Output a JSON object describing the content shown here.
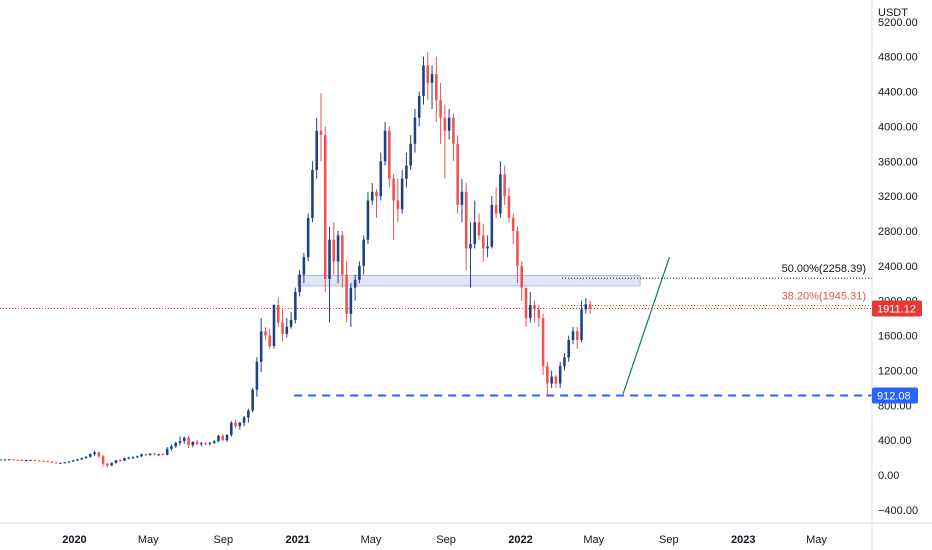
{
  "chart_data": {
    "type": "candlestick",
    "currency": "USDT",
    "y_ticks": [
      5200,
      4800,
      4400,
      4000,
      3600,
      3200,
      2800,
      2400,
      2000,
      1600,
      1200,
      800,
      400,
      0,
      -400
    ],
    "y_tick_labels": [
      "5200.00",
      "4800.00",
      "4400.00",
      "4000.00",
      "3600.00",
      "3200.00",
      "2800.00",
      "2400.00",
      "2000.00",
      "1600.00",
      "1200.00",
      "800.00",
      "400.00",
      "0.00",
      "−400.00"
    ],
    "ylim": [
      -550,
      5450
    ],
    "x_range": [
      "2019-09-01",
      "2023-07-31"
    ],
    "x_ticks": [
      {
        "label": "2020",
        "date": "2020-01-01",
        "bold": true
      },
      {
        "label": "May",
        "date": "2020-05-01",
        "bold": false
      },
      {
        "label": "Sep",
        "date": "2020-09-01",
        "bold": false
      },
      {
        "label": "2021",
        "date": "2021-01-01",
        "bold": true
      },
      {
        "label": "May",
        "date": "2021-05-01",
        "bold": false
      },
      {
        "label": "Sep",
        "date": "2021-09-01",
        "bold": false
      },
      {
        "label": "2022",
        "date": "2022-01-01",
        "bold": true
      },
      {
        "label": "May",
        "date": "2022-05-01",
        "bold": false
      },
      {
        "label": "Sep",
        "date": "2022-09-01",
        "bold": false
      },
      {
        "label": "2023",
        "date": "2023-01-01",
        "bold": true
      },
      {
        "label": "May",
        "date": "2023-05-01",
        "bold": false
      }
    ],
    "candle_interval_days": 7,
    "first_candle_date": "2019-09-02",
    "up_color": "#1e3f8a",
    "down_color": "#ef5350",
    "candles": [
      [
        178,
        180,
        174,
        178
      ],
      [
        178,
        182,
        175,
        179
      ],
      [
        179,
        183,
        174,
        180
      ],
      [
        180,
        182,
        172,
        176
      ],
      [
        176,
        178,
        170,
        174
      ],
      [
        174,
        178,
        168,
        170
      ],
      [
        170,
        176,
        166,
        172
      ],
      [
        172,
        176,
        168,
        173
      ],
      [
        173,
        177,
        166,
        168
      ],
      [
        168,
        172,
        160,
        163
      ],
      [
        163,
        168,
        156,
        160
      ],
      [
        160,
        164,
        150,
        152
      ],
      [
        152,
        156,
        140,
        145
      ],
      [
        145,
        150,
        135,
        138
      ],
      [
        138,
        145,
        132,
        140
      ],
      [
        140,
        150,
        135,
        146
      ],
      [
        146,
        160,
        140,
        156
      ],
      [
        156,
        172,
        150,
        168
      ],
      [
        168,
        185,
        160,
        180
      ],
      [
        180,
        200,
        172,
        195
      ],
      [
        195,
        215,
        188,
        210
      ],
      [
        210,
        250,
        200,
        240
      ],
      [
        240,
        280,
        220,
        260
      ],
      [
        260,
        270,
        200,
        215
      ],
      [
        215,
        230,
        100,
        130
      ],
      [
        130,
        145,
        90,
        110
      ],
      [
        110,
        145,
        100,
        140
      ],
      [
        140,
        175,
        130,
        170
      ],
      [
        170,
        180,
        150,
        165
      ],
      [
        165,
        200,
        160,
        195
      ],
      [
        195,
        210,
        180,
        200
      ],
      [
        200,
        215,
        185,
        205
      ],
      [
        205,
        225,
        195,
        215
      ],
      [
        215,
        245,
        205,
        240
      ],
      [
        240,
        245,
        220,
        230
      ],
      [
        230,
        250,
        220,
        245
      ],
      [
        245,
        255,
        225,
        235
      ],
      [
        235,
        245,
        220,
        240
      ],
      [
        240,
        250,
        225,
        232
      ],
      [
        232,
        320,
        225,
        300
      ],
      [
        300,
        350,
        280,
        330
      ],
      [
        330,
        380,
        310,
        370
      ],
      [
        370,
        445,
        340,
        390
      ],
      [
        390,
        440,
        360,
        430
      ],
      [
        430,
        450,
        310,
        345
      ],
      [
        345,
        390,
        320,
        380
      ],
      [
        380,
        400,
        340,
        355
      ],
      [
        355,
        380,
        330,
        365
      ],
      [
        365,
        380,
        345,
        360
      ],
      [
        360,
        380,
        340,
        370
      ],
      [
        370,
        400,
        355,
        390
      ],
      [
        390,
        460,
        375,
        450
      ],
      [
        450,
        470,
        390,
        400
      ],
      [
        400,
        470,
        380,
        460
      ],
      [
        460,
        620,
        440,
        600
      ],
      [
        600,
        640,
        540,
        560
      ],
      [
        560,
        610,
        520,
        600
      ],
      [
        600,
        680,
        560,
        660
      ],
      [
        660,
        760,
        600,
        740
      ],
      [
        740,
        1000,
        720,
        980
      ],
      [
        980,
        1350,
        900,
        1300
      ],
      [
        1300,
        1800,
        1180,
        1650
      ],
      [
        1650,
        1700,
        1550,
        1600
      ],
      [
        1600,
        1680,
        1450,
        1480
      ],
      [
        1480,
        1960,
        1450,
        1950
      ],
      [
        1950,
        2040,
        1700,
        1750
      ],
      [
        1750,
        1900,
        1530,
        1620
      ],
      [
        1620,
        1800,
        1580,
        1700
      ],
      [
        1700,
        1870,
        1680,
        1780
      ],
      [
        1780,
        2150,
        1740,
        2100
      ],
      [
        2100,
        2350,
        2050,
        2300
      ],
      [
        2300,
        2550,
        2200,
        2500
      ],
      [
        2500,
        3000,
        2450,
        2950
      ],
      [
        2950,
        3600,
        2900,
        3500
      ],
      [
        3500,
        4100,
        3400,
        3950
      ],
      [
        3950,
        4380,
        3600,
        3900
      ],
      [
        3900,
        4000,
        2100,
        2250
      ],
      [
        2250,
        2850,
        1750,
        2700
      ],
      [
        2700,
        2900,
        2300,
        2450
      ],
      [
        2450,
        2800,
        2200,
        2750
      ],
      [
        2750,
        2800,
        2150,
        2300
      ],
      [
        2300,
        2450,
        1750,
        1850
      ],
      [
        1850,
        2200,
        1700,
        2150
      ],
      [
        2150,
        2300,
        2000,
        2240
      ],
      [
        2240,
        2450,
        2200,
        2400
      ],
      [
        2400,
        2750,
        2300,
        2700
      ],
      [
        2700,
        3250,
        2650,
        3150
      ],
      [
        3150,
        3350,
        3100,
        3250
      ],
      [
        3250,
        3280,
        2950,
        3200
      ],
      [
        3200,
        3700,
        3150,
        3600
      ],
      [
        3600,
        4050,
        3550,
        3950
      ],
      [
        3950,
        4000,
        3300,
        3400
      ],
      [
        3400,
        3450,
        2700,
        3150
      ],
      [
        3150,
        3400,
        2900,
        3050
      ],
      [
        3050,
        3500,
        3000,
        3400
      ],
      [
        3400,
        3700,
        3300,
        3550
      ],
      [
        3550,
        3900,
        3500,
        3800
      ],
      [
        3800,
        4200,
        3700,
        4100
      ],
      [
        4100,
        4400,
        4000,
        4350
      ],
      [
        4350,
        4800,
        4250,
        4700
      ],
      [
        4700,
        4850,
        4300,
        4500
      ],
      [
        4500,
        4700,
        4200,
        4600
      ],
      [
        4600,
        4800,
        4050,
        4300
      ],
      [
        4300,
        4500,
        3800,
        4100
      ],
      [
        4100,
        4250,
        3400,
        3950
      ],
      [
        3950,
        4200,
        3850,
        4100
      ],
      [
        4100,
        4150,
        3600,
        3800
      ],
      [
        3800,
        3900,
        3000,
        3100
      ],
      [
        3100,
        3400,
        2900,
        3250
      ],
      [
        3250,
        3350,
        2350,
        2600
      ],
      [
        2600,
        2900,
        2150,
        2650
      ],
      [
        2650,
        3150,
        2600,
        2900
      ],
      [
        2900,
        3000,
        2700,
        2750
      ],
      [
        2750,
        2880,
        2450,
        2600
      ],
      [
        2600,
        2750,
        2500,
        2620
      ],
      [
        2620,
        3200,
        2600,
        3100
      ],
      [
        3100,
        3300,
        2950,
        3000
      ],
      [
        3000,
        3600,
        2950,
        3450
      ],
      [
        3450,
        3550,
        3100,
        3200
      ],
      [
        3200,
        3300,
        2900,
        2950
      ],
      [
        2950,
        3000,
        2650,
        2800
      ],
      [
        2800,
        2850,
        2200,
        2400
      ],
      [
        2400,
        2450,
        2000,
        2150
      ],
      [
        2150,
        2150,
        1700,
        1800
      ],
      [
        1800,
        2100,
        1750,
        1950
      ],
      [
        1950,
        2000,
        1750,
        1900
      ],
      [
        1900,
        1950,
        1700,
        1800
      ],
      [
        1800,
        1850,
        1150,
        1250
      ],
      [
        1250,
        1300,
        900,
        1050
      ],
      [
        1050,
        1200,
        1000,
        1130
      ],
      [
        1130,
        1150,
        1000,
        1050
      ],
      [
        1050,
        1300,
        1000,
        1250
      ],
      [
        1250,
        1400,
        1200,
        1350
      ],
      [
        1350,
        1600,
        1300,
        1550
      ],
      [
        1550,
        1700,
        1500,
        1650
      ],
      [
        1650,
        1700,
        1450,
        1550
      ],
      [
        1550,
        2000,
        1520,
        1900
      ],
      [
        1900,
        2030,
        1850,
        1960
      ],
      [
        1960,
        2000,
        1850,
        1911
      ]
    ],
    "support_zone": {
      "y_low": 2170,
      "y_high": 2290,
      "x_start": "2021-01-01",
      "x_end": "2022-07-16"
    },
    "fib_levels": [
      {
        "label": "50.00%(2258.39)",
        "value": 2258.39,
        "color": "#131722"
      },
      {
        "label": "38.20%(1945.31)",
        "value": 1945.31,
        "color": "#ef5350"
      }
    ],
    "fib_line_start": "2022-03-10",
    "current_price": {
      "value": 1911.12,
      "label": "1911.12",
      "color": "#e53935"
    },
    "horizontal_line": {
      "value": 912.08,
      "label": "912.08",
      "color": "#2962ff",
      "x_start": "2020-12-26"
    },
    "trend_line": {
      "x1": "2022-06-18",
      "y1": 930,
      "x2": "2022-09-02",
      "y2": 2500,
      "color": "#1b7a4b"
    },
    "grid": false
  }
}
